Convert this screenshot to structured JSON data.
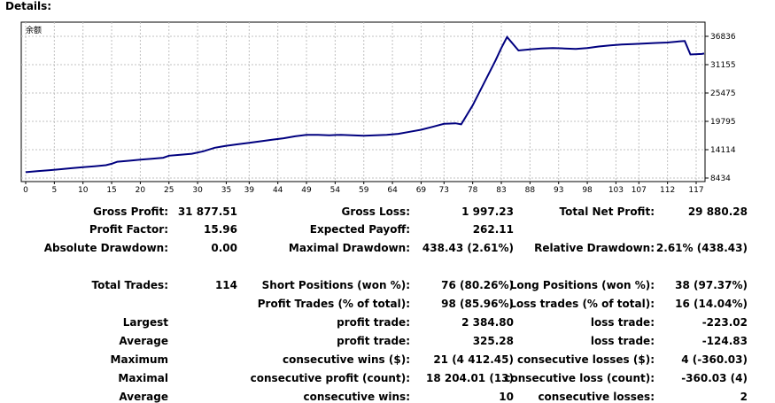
{
  "header": {
    "title": "Details:"
  },
  "chart_data": {
    "type": "line",
    "series_label": "余额",
    "y_ticks": [
      36836,
      31155,
      25475,
      19795,
      14114,
      8434
    ],
    "ylim": [
      8434,
      36836
    ],
    "x_ticks": [
      0,
      5,
      10,
      15,
      20,
      25,
      30,
      35,
      39,
      44,
      49,
      54,
      59,
      64,
      69,
      73,
      78,
      83,
      88,
      93,
      98,
      103,
      107,
      112,
      117
    ],
    "xlim": [
      0,
      120
    ],
    "grid": true,
    "line_color": "#00007f",
    "x": [
      0,
      2,
      4,
      6,
      8,
      10,
      12,
      14,
      15,
      16,
      18,
      20,
      22,
      24,
      25,
      27,
      29,
      31,
      33,
      35,
      37,
      39,
      41,
      43,
      45,
      47,
      49,
      51,
      53,
      55,
      57,
      59,
      61,
      63,
      65,
      67,
      69,
      71,
      73,
      75,
      76,
      78,
      80,
      82,
      83,
      84,
      86,
      88,
      90,
      92,
      94,
      96,
      98,
      100,
      102,
      104,
      106,
      108,
      110,
      112,
      114,
      115,
      116,
      118,
      120
    ],
    "y": [
      9600,
      9800,
      10000,
      10200,
      10400,
      10600,
      10800,
      11000,
      11300,
      11700,
      11900,
      12100,
      12300,
      12500,
      12900,
      13100,
      13300,
      13800,
      14500,
      14900,
      15200,
      15500,
      15800,
      16100,
      16400,
      16800,
      17100,
      17100,
      17000,
      17100,
      17000,
      16900,
      17000,
      17100,
      17300,
      17700,
      18100,
      18700,
      19300,
      19400,
      19200,
      23000,
      27500,
      32000,
      34500,
      36700,
      34000,
      34200,
      34400,
      34500,
      34400,
      34300,
      34500,
      34800,
      35000,
      35200,
      35300,
      35400,
      35500,
      35600,
      35800,
      35900,
      33200,
      33300,
      33400
    ]
  },
  "stats": {
    "gross_profit_label": "Gross Profit:",
    "gross_profit": "31 877.51",
    "gross_loss_label": "Gross Loss:",
    "gross_loss": "1 997.23",
    "total_net_profit_label": "Total Net Profit:",
    "total_net_profit": "29 880.28",
    "profit_factor_label": "Profit Factor:",
    "profit_factor": "15.96",
    "expected_payoff_label": "Expected Payoff:",
    "expected_payoff": "262.11",
    "absolute_drawdown_label": "Absolute Drawdown:",
    "absolute_drawdown": "0.00",
    "maximal_drawdown_label": "Maximal Drawdown:",
    "maximal_drawdown": "438.43 (2.61%)",
    "relative_drawdown_label": "Relative Drawdown:",
    "relative_drawdown": "2.61% (438.43)",
    "total_trades_label": "Total Trades:",
    "total_trades": "114",
    "short_positions_label": "Short Positions (won %):",
    "short_positions": "76 (80.26%)",
    "long_positions_label": "Long Positions (won %):",
    "long_positions": "38 (97.37%)",
    "profit_trades_label": "Profit Trades (% of total):",
    "profit_trades": "98 (85.96%)",
    "loss_trades_label": "Loss trades (% of total):",
    "loss_trades": "16 (14.04%)",
    "largest_label": "Largest",
    "largest_profit_label": "profit trade:",
    "largest_profit": "2 384.80",
    "largest_loss_label": "loss trade:",
    "largest_loss": "-223.02",
    "average_label": "Average",
    "average_profit_label": "profit trade:",
    "average_profit": "325.28",
    "average_loss_label": "loss trade:",
    "average_loss": "-124.83",
    "maximum_label": "Maximum",
    "max_consec_wins_label": "consecutive wins ($):",
    "max_consec_wins": "21 (4 412.45)",
    "max_consec_losses_label": "consecutive losses ($):",
    "max_consec_losses": "4 (-360.03)",
    "maximal_label": "Maximal",
    "maximal_consec_profit_label": "consecutive profit (count):",
    "maximal_consec_profit": "18 204.01 (13)",
    "maximal_consec_loss_label": "consecutive loss (count):",
    "maximal_consec_loss": "-360.03 (4)",
    "average2_label": "Average",
    "avg_consec_wins_label": "consecutive wins:",
    "avg_consec_wins": "10",
    "avg_consec_losses_label": "consecutive losses:",
    "avg_consec_losses": "2"
  }
}
